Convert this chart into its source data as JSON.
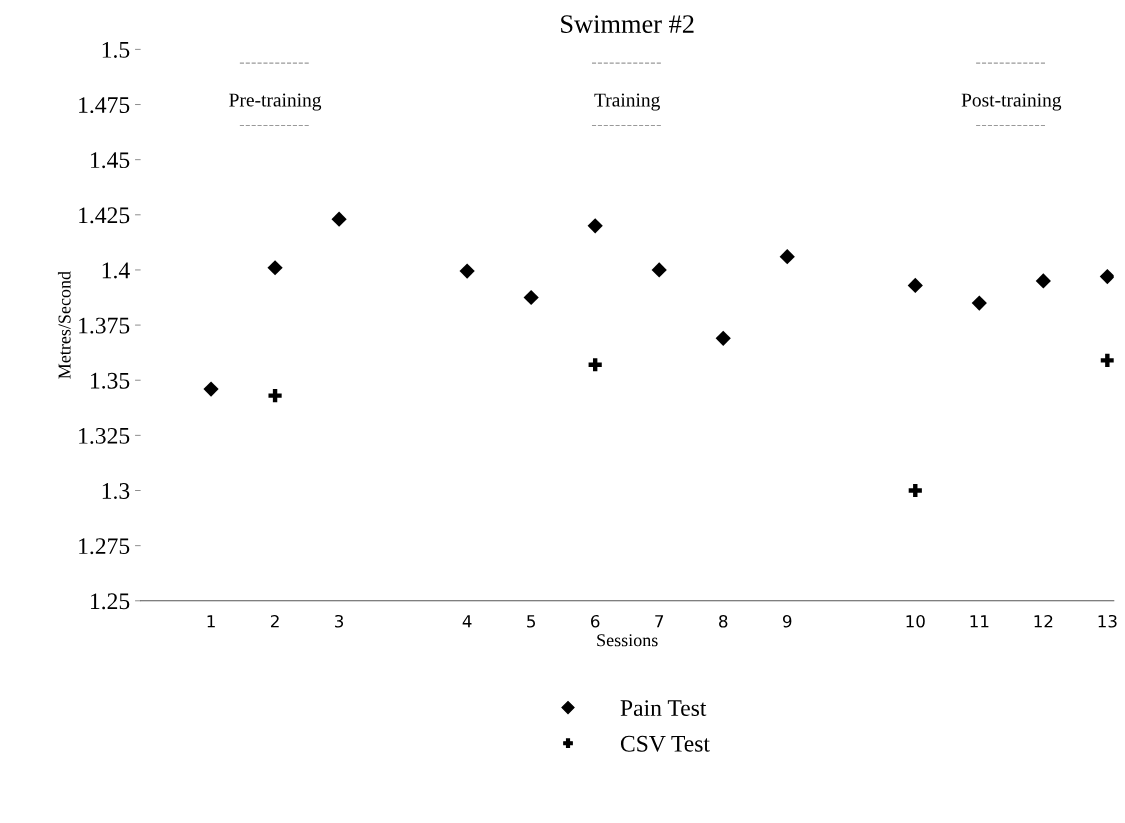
{
  "chart_data": {
    "type": "scatter",
    "title": "Swimmer #2",
    "xlabel": "Sessions",
    "ylabel": "Metres/Second",
    "categories": [
      "1",
      "2",
      "3",
      null,
      "4",
      "5",
      "6",
      "7",
      "8",
      "9",
      null,
      "10",
      "11",
      "12",
      "13"
    ],
    "ylim": [
      1.25,
      1.5
    ],
    "yticks": [
      1.25,
      1.275,
      1.3,
      1.325,
      1.35,
      1.375,
      1.4,
      1.425,
      1.45,
      1.475,
      1.5
    ],
    "series": [
      {
        "name": "Pain Test",
        "color": "#000000",
        "marker": "diamond",
        "values": [
          1.346,
          1.401,
          1.423,
          null,
          1.3995,
          1.3875,
          1.42,
          1.4,
          1.369,
          1.406,
          null,
          1.393,
          1.385,
          1.395,
          1.397
        ]
      },
      {
        "name": "CSV Test",
        "color": "#000000",
        "marker": "cross",
        "values": [
          null,
          1.343,
          null,
          null,
          null,
          null,
          1.357,
          null,
          null,
          null,
          null,
          1.3,
          null,
          null,
          1.359
        ]
      }
    ],
    "annotations": [
      "Pre-training",
      "Training",
      "Post-training"
    ],
    "legend": "bottom",
    "grid": false
  }
}
